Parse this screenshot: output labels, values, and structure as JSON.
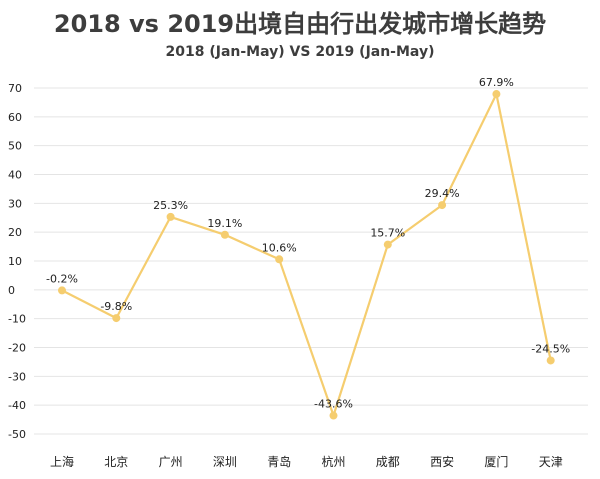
{
  "title": "2018 vs 2019出境自由行出发城市增长趋势",
  "subtitle": "2018 (Jan-May)  VS 2019 (Jan-May)",
  "colors": {
    "line": "#f5cd6f",
    "marker": "#f5cd6f",
    "grid": "#e4e4e4",
    "text": "#3d3d3d",
    "tick_text": "#222222"
  },
  "chart_data": {
    "type": "line",
    "title": "2018 vs 2019出境自由行出发城市增长趋势",
    "subtitle": "2018 (Jan-May)  VS 2019 (Jan-May)",
    "categories": [
      "上海",
      "北京",
      "广州",
      "深圳",
      "青岛",
      "杭州",
      "成都",
      "西安",
      "厦门",
      "天津"
    ],
    "series": [
      {
        "values": [
          -0.2,
          -9.8,
          25.3,
          19.1,
          10.6,
          -43.6,
          15.7,
          29.4,
          67.9,
          -24.5
        ],
        "data_labels": [
          "-0.2%",
          "-9.8%",
          "25.3%",
          "19.1%",
          "10.6%",
          "-43.6%",
          "15.7%",
          "29.4%",
          "67.9%",
          "-24.5%"
        ]
      }
    ],
    "y_ticks": [
      70,
      60,
      50,
      40,
      30,
      20,
      10,
      0,
      -10,
      -20,
      -30,
      -40,
      -50
    ],
    "ylim": [
      -50,
      70
    ],
    "xlabel": "",
    "ylabel": "",
    "grid": true,
    "legend": "none"
  }
}
